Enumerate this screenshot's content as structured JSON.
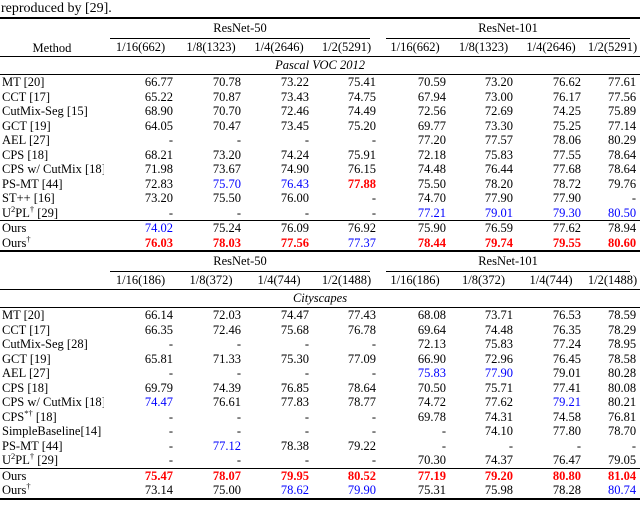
{
  "caption": "reproduced by [29].",
  "colors": {
    "red": "#ff0000",
    "blue": "#0000ff"
  },
  "method_header": "Method",
  "tables": [
    {
      "groups": [
        "ResNet-50",
        "ResNet-101"
      ],
      "columns": [
        "1/16(662)",
        "1/8(1323)",
        "1/4(2646)",
        "1/2(5291)",
        "1/16(662)",
        "1/8(1323)",
        "1/4(2646)",
        "1/2(5291)"
      ],
      "section": "Pascal VOC 2012",
      "rows": [
        {
          "method": "MT [20]",
          "values": [
            "66.77",
            "70.78",
            "73.22",
            "75.41",
            "70.59",
            "73.20",
            "76.62",
            "77.61"
          ]
        },
        {
          "method": "CCT [17]",
          "values": [
            "65.22",
            "70.87",
            "73.43",
            "74.75",
            "67.94",
            "73.00",
            "76.17",
            "77.56"
          ]
        },
        {
          "method": "CutMix-Seg [15]",
          "values": [
            "68.90",
            "70.70",
            "72.46",
            "74.49",
            "72.56",
            "72.69",
            "74.25",
            "75.89"
          ]
        },
        {
          "method": "GCT [19]",
          "values": [
            "64.05",
            "70.47",
            "73.45",
            "75.20",
            "69.77",
            "73.30",
            "75.25",
            "77.14"
          ]
        },
        {
          "method": "AEL [27]",
          "values": [
            "-",
            "-",
            "-",
            "-",
            "77.20",
            "77.57",
            "78.06",
            "80.29"
          ]
        },
        {
          "method": "CPS [18]",
          "values": [
            "68.21",
            "73.20",
            "74.24",
            "75.91",
            "72.18",
            "75.83",
            "77.55",
            "78.64"
          ]
        },
        {
          "method": "CPS w/ CutMix [18]",
          "values": [
            "71.98",
            "73.67",
            "74.90",
            "76.15",
            "74.48",
            "76.44",
            "77.68",
            "78.64"
          ]
        },
        {
          "method": "PS-MT [44]",
          "values": [
            "72.83",
            {
              "t": "75.70",
              "c": "blue"
            },
            {
              "t": "76.43",
              "c": "blue"
            },
            {
              "t": "77.88",
              "c": "red"
            },
            "75.50",
            "78.20",
            "78.72",
            "79.76"
          ]
        },
        {
          "method": "ST++ [16]",
          "values": [
            "73.20",
            "75.50",
            "76.00",
            "-",
            "74.70",
            "77.90",
            "77.90",
            "-"
          ]
        },
        {
          "method": "U^{2}PL^{†} [29]",
          "values": [
            "-",
            "-",
            "-",
            "-",
            {
              "t": "77.21",
              "c": "blue"
            },
            {
              "t": "79.01",
              "c": "blue"
            },
            {
              "t": "79.30",
              "c": "blue"
            },
            {
              "t": "80.50",
              "c": "blue"
            }
          ]
        }
      ],
      "ours": [
        {
          "method": "Ours",
          "values": [
            {
              "t": "74.02",
              "c": "blue"
            },
            "75.24",
            "76.09",
            "76.92",
            "75.90",
            "76.59",
            "77.62",
            "78.94"
          ]
        },
        {
          "method": "Ours^{†}",
          "values": [
            {
              "t": "76.03",
              "c": "red"
            },
            {
              "t": "78.03",
              "c": "red"
            },
            {
              "t": "77.56",
              "c": "red"
            },
            {
              "t": "77.37",
              "c": "blue"
            },
            {
              "t": "78.44",
              "c": "red"
            },
            {
              "t": "79.74",
              "c": "red"
            },
            {
              "t": "79.55",
              "c": "red"
            },
            {
              "t": "80.60",
              "c": "red"
            }
          ]
        }
      ]
    },
    {
      "groups": [
        "ResNet-50",
        "ResNet-101"
      ],
      "columns": [
        "1/16(186)",
        "1/8(372)",
        "1/4(744)",
        "1/2(1488)",
        "1/16(186)",
        "1/8(372)",
        "1/4(744)",
        "1/2(1488)"
      ],
      "section": "Cityscapes",
      "rows": [
        {
          "method": "MT [20]",
          "values": [
            "66.14",
            "72.03",
            "74.47",
            "77.43",
            "68.08",
            "73.71",
            "76.53",
            "78.59"
          ]
        },
        {
          "method": "CCT [17]",
          "values": [
            "66.35",
            "72.46",
            "75.68",
            "76.78",
            "69.64",
            "74.48",
            "76.35",
            "78.29"
          ]
        },
        {
          "method": "CutMix-Seg [28]",
          "values": [
            "-",
            "-",
            "-",
            "-",
            "72.13",
            "75.83",
            "77.24",
            "78.95"
          ]
        },
        {
          "method": "GCT [19]",
          "values": [
            "65.81",
            "71.33",
            "75.30",
            "77.09",
            "66.90",
            "72.96",
            "76.45",
            "78.58"
          ]
        },
        {
          "method": "AEL [27]",
          "values": [
            "-",
            "-",
            "-",
            "-",
            {
              "t": "75.83",
              "c": "blue"
            },
            {
              "t": "77.90",
              "c": "blue"
            },
            "79.01",
            "80.28"
          ]
        },
        {
          "method": "CPS [18]",
          "values": [
            "69.79",
            "74.39",
            "76.85",
            "78.64",
            "70.50",
            "75.71",
            "77.41",
            "80.08"
          ]
        },
        {
          "method": "CPS w/ CutMix [18]",
          "values": [
            {
              "t": "74.47",
              "c": "blue"
            },
            "76.61",
            "77.83",
            "78.77",
            "74.72",
            "77.62",
            {
              "t": "79.21",
              "c": "blue"
            },
            "80.21"
          ]
        },
        {
          "method": "CPS^{*†} [18]",
          "values": [
            "-",
            "-",
            "-",
            "-",
            "69.78",
            "74.31",
            "74.58",
            "76.81"
          ]
        },
        {
          "method": "SimpleBaseline[14]",
          "values": [
            "-",
            "-",
            "-",
            "-",
            "-",
            "74.10",
            "77.80",
            "78.70"
          ]
        },
        {
          "method": "PS-MT [44]",
          "values": [
            "-",
            {
              "t": "77.12",
              "c": "blue"
            },
            "78.38",
            "79.22",
            "-",
            "-",
            "-",
            "-"
          ]
        },
        {
          "method": "U^{2}PL^{†} [29]",
          "values": [
            "-",
            "-",
            "-",
            "-",
            "70.30",
            "74.37",
            "76.47",
            "79.05"
          ]
        }
      ],
      "ours": [
        {
          "method": "Ours",
          "values": [
            {
              "t": "75.47",
              "c": "red"
            },
            {
              "t": "78.07",
              "c": "red"
            },
            {
              "t": "79.95",
              "c": "red"
            },
            {
              "t": "80.52",
              "c": "red"
            },
            {
              "t": "77.19",
              "c": "red"
            },
            {
              "t": "79.20",
              "c": "red"
            },
            {
              "t": "80.80",
              "c": "red"
            },
            {
              "t": "81.04",
              "c": "red"
            }
          ]
        },
        {
          "method": "Ours^{†}",
          "values": [
            "73.14",
            "75.00",
            {
              "t": "78.62",
              "c": "blue"
            },
            {
              "t": "79.90",
              "c": "blue"
            },
            "75.31",
            "75.98",
            "78.28",
            {
              "t": "80.74",
              "c": "blue"
            }
          ]
        }
      ]
    }
  ]
}
